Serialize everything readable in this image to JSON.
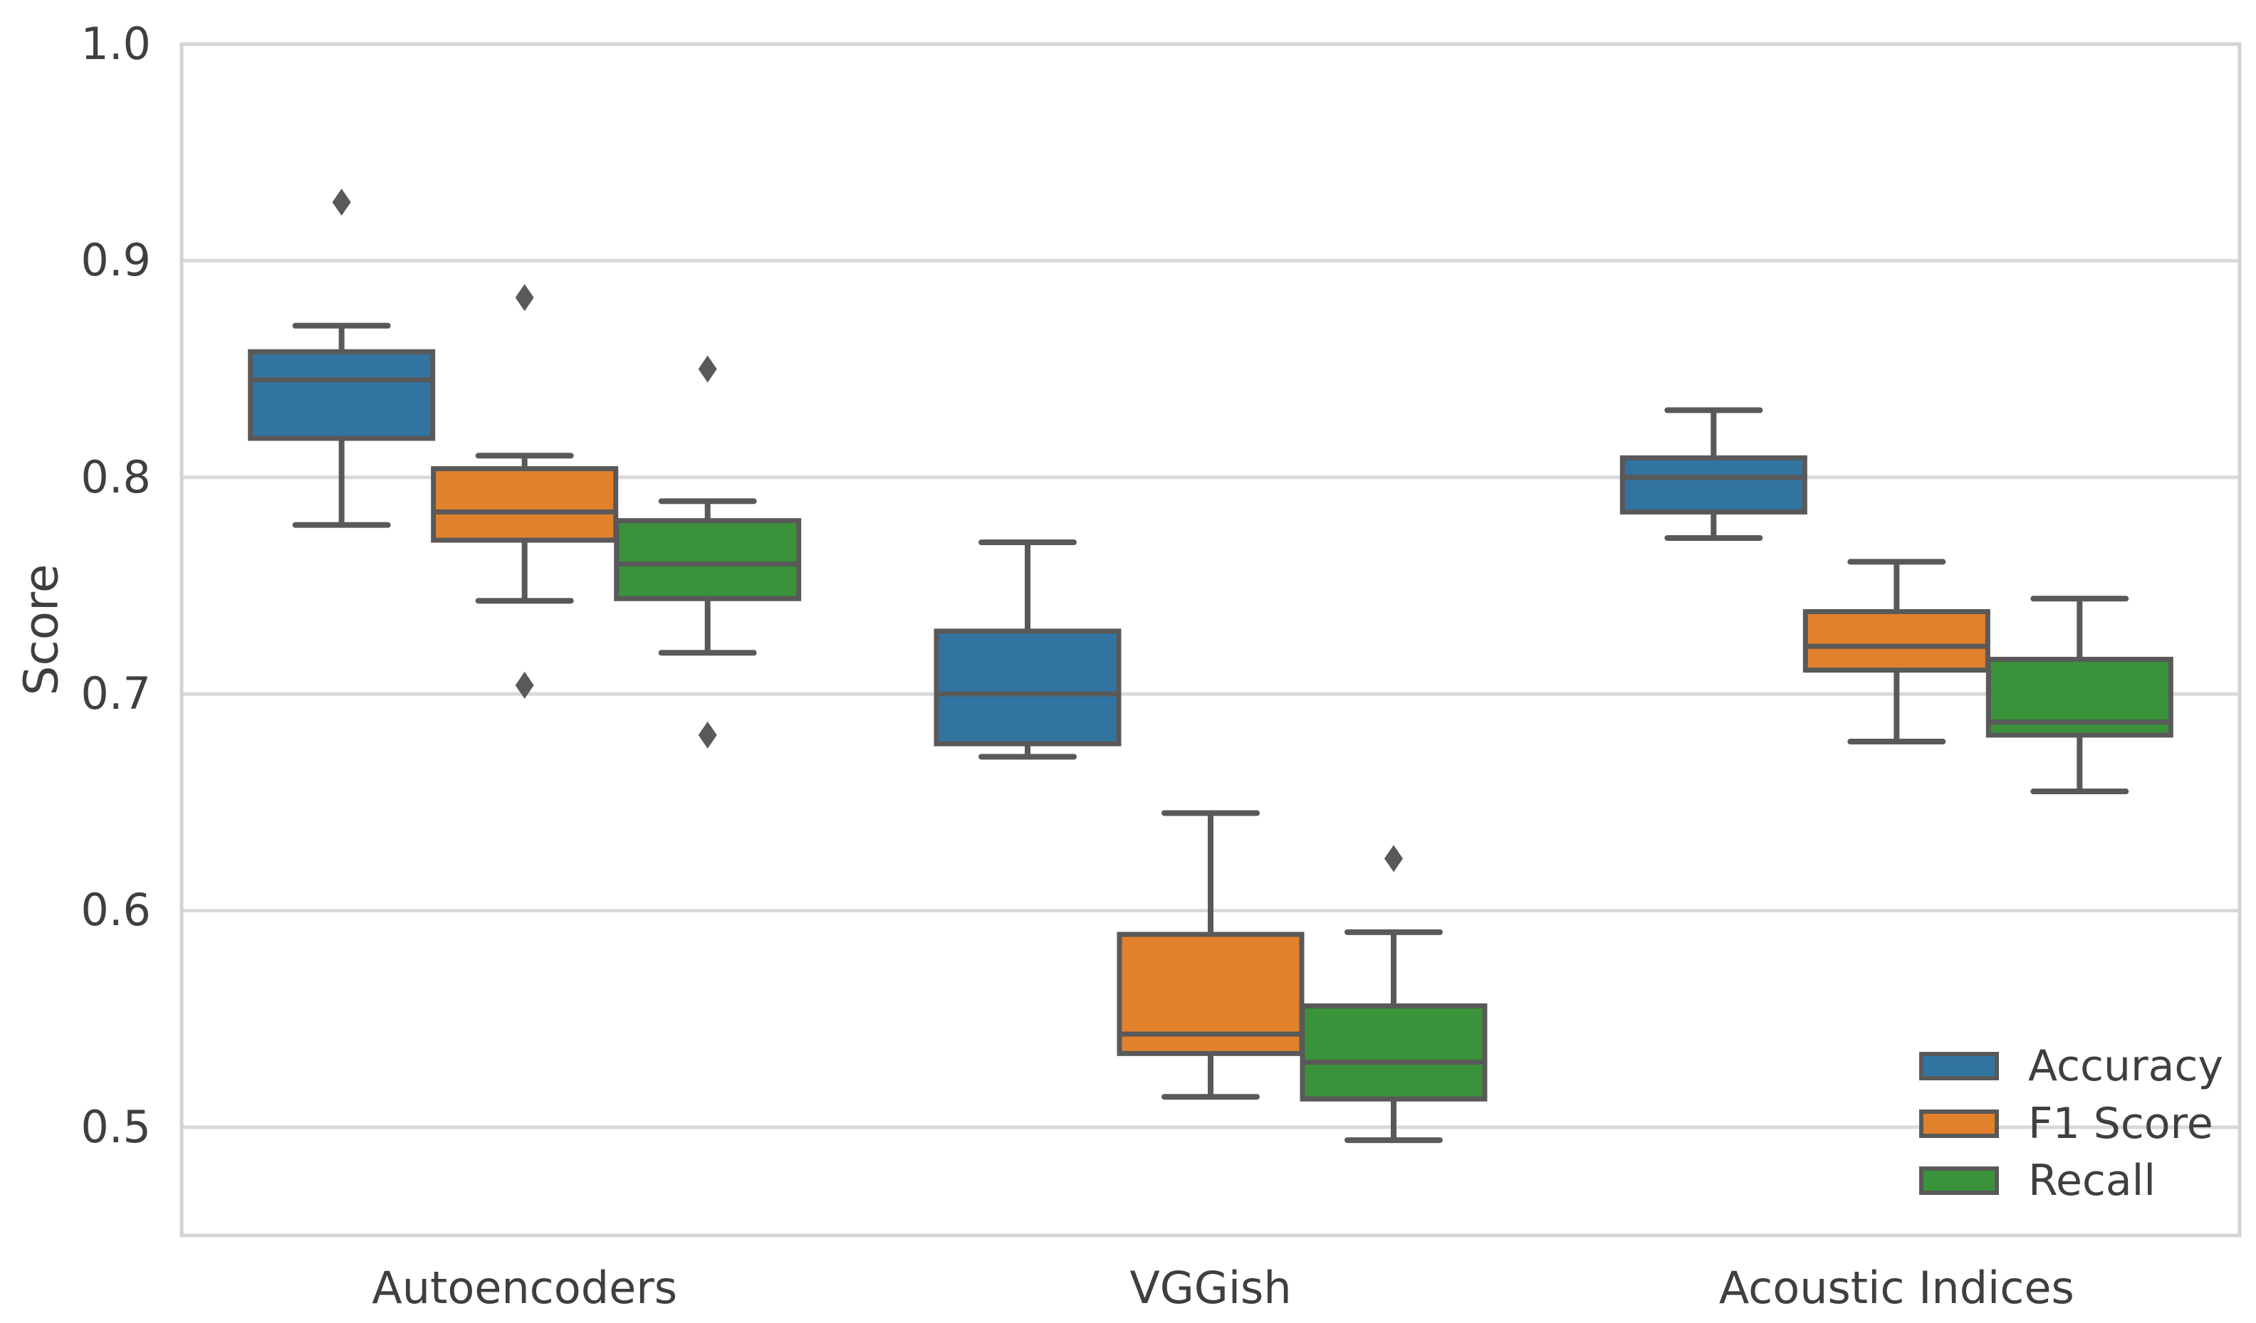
{
  "chart_data": {
    "type": "boxplot",
    "title": "",
    "xlabel": "",
    "ylabel": "Score",
    "categories": [
      "Autoencoders",
      "VGGish",
      "Acoustic Indices"
    ],
    "ylim": [
      0.45,
      1.0
    ],
    "grid": true,
    "yticks": [
      {
        "value": 1.0,
        "label": "1.0"
      },
      {
        "value": 0.9,
        "label": "0.9"
      },
      {
        "value": 0.8,
        "label": "0.8"
      },
      {
        "value": 0.7,
        "label": "0.7"
      },
      {
        "value": 0.6,
        "label": "0.6"
      },
      {
        "value": 0.5,
        "label": "0.5"
      }
    ],
    "legend": {
      "position": "lower-right",
      "entries": [
        "Accuracy",
        "F1 Score",
        "Recall"
      ]
    },
    "style": {
      "background": "#FFFFFF",
      "box_edge_color": "#595959",
      "whisker_color": "#595959",
      "flier_color": "#595959",
      "grid_color": "#D9D9D9",
      "spine_color": "#D3D3D3",
      "text_color": "#3F3F3F"
    },
    "series": [
      {
        "name": "Accuracy",
        "color": "#3274A1",
        "boxes": [
          {
            "category": "Autoencoders",
            "whislo": 0.778,
            "q1": 0.818,
            "med": 0.845,
            "q3": 0.858,
            "whishi": 0.87,
            "fliers": [
              0.927
            ]
          },
          {
            "category": "VGGish",
            "whislo": 0.671,
            "q1": 0.677,
            "med": 0.7,
            "q3": 0.729,
            "whishi": 0.77,
            "fliers": []
          },
          {
            "category": "Acoustic Indices",
            "whislo": 0.772,
            "q1": 0.784,
            "med": 0.8,
            "q3": 0.809,
            "whishi": 0.831,
            "fliers": []
          }
        ]
      },
      {
        "name": "F1 Score",
        "color": "#E1812C",
        "boxes": [
          {
            "category": "Autoencoders",
            "whislo": 0.743,
            "q1": 0.771,
            "med": 0.784,
            "q3": 0.804,
            "whishi": 0.81,
            "fliers": [
              0.883,
              0.704
            ]
          },
          {
            "category": "VGGish",
            "whislo": 0.514,
            "q1": 0.534,
            "med": 0.543,
            "q3": 0.589,
            "whishi": 0.645,
            "fliers": []
          },
          {
            "category": "Acoustic Indices",
            "whislo": 0.678,
            "q1": 0.711,
            "med": 0.722,
            "q3": 0.738,
            "whishi": 0.761,
            "fliers": []
          }
        ]
      },
      {
        "name": "Recall",
        "color": "#3A923A",
        "boxes": [
          {
            "category": "Autoencoders",
            "whislo": 0.719,
            "q1": 0.744,
            "med": 0.76,
            "q3": 0.78,
            "whishi": 0.789,
            "fliers": [
              0.85,
              0.681
            ]
          },
          {
            "category": "VGGish",
            "whislo": 0.494,
            "q1": 0.513,
            "med": 0.53,
            "q3": 0.556,
            "whishi": 0.59,
            "fliers": [
              0.624
            ]
          },
          {
            "category": "Acoustic Indices",
            "whislo": 0.655,
            "q1": 0.681,
            "med": 0.687,
            "q3": 0.716,
            "whishi": 0.744,
            "fliers": []
          }
        ]
      }
    ]
  }
}
